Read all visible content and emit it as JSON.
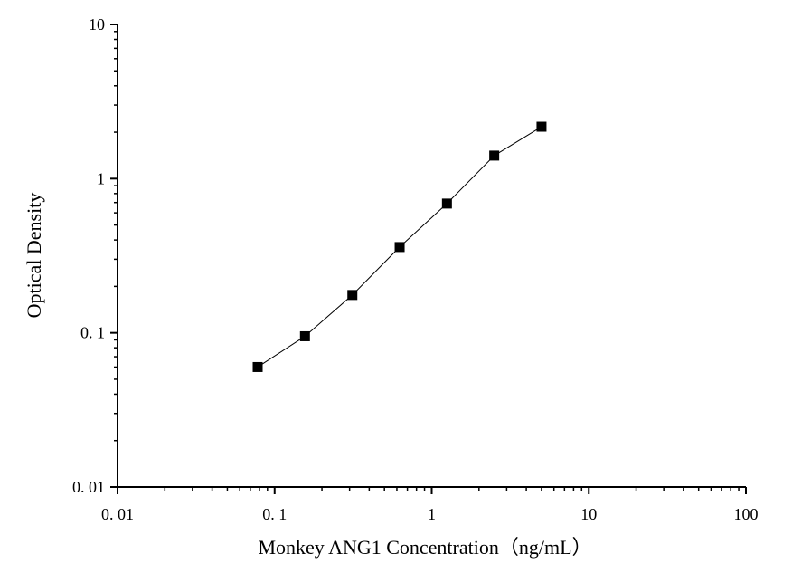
{
  "chart_data": {
    "type": "line",
    "title": "",
    "xlabel": "Monkey ANG1 Concentration（ng/mL）",
    "ylabel": "Optical Density",
    "x_scale": "log",
    "y_scale": "log",
    "xlim": [
      0.01,
      100
    ],
    "ylim": [
      0.01,
      10
    ],
    "x_ticks": [
      0.01,
      0.1,
      1,
      10,
      100
    ],
    "x_tick_labels": [
      "0. 01",
      "0. 1",
      "1",
      "10",
      "100"
    ],
    "y_ticks": [
      0.01,
      0.1,
      1,
      10
    ],
    "y_tick_labels": [
      "0. 01",
      "0. 1",
      "1",
      "10"
    ],
    "grid": false,
    "marker": "square",
    "colors": {
      "line": "#000000",
      "marker": "#000000"
    },
    "series": [
      {
        "x": [
          0.078,
          0.156,
          0.3125,
          0.625,
          1.25,
          2.5,
          5
        ],
        "y": [
          0.06,
          0.095,
          0.176,
          0.36,
          0.689,
          1.41,
          2.17
        ]
      }
    ]
  }
}
